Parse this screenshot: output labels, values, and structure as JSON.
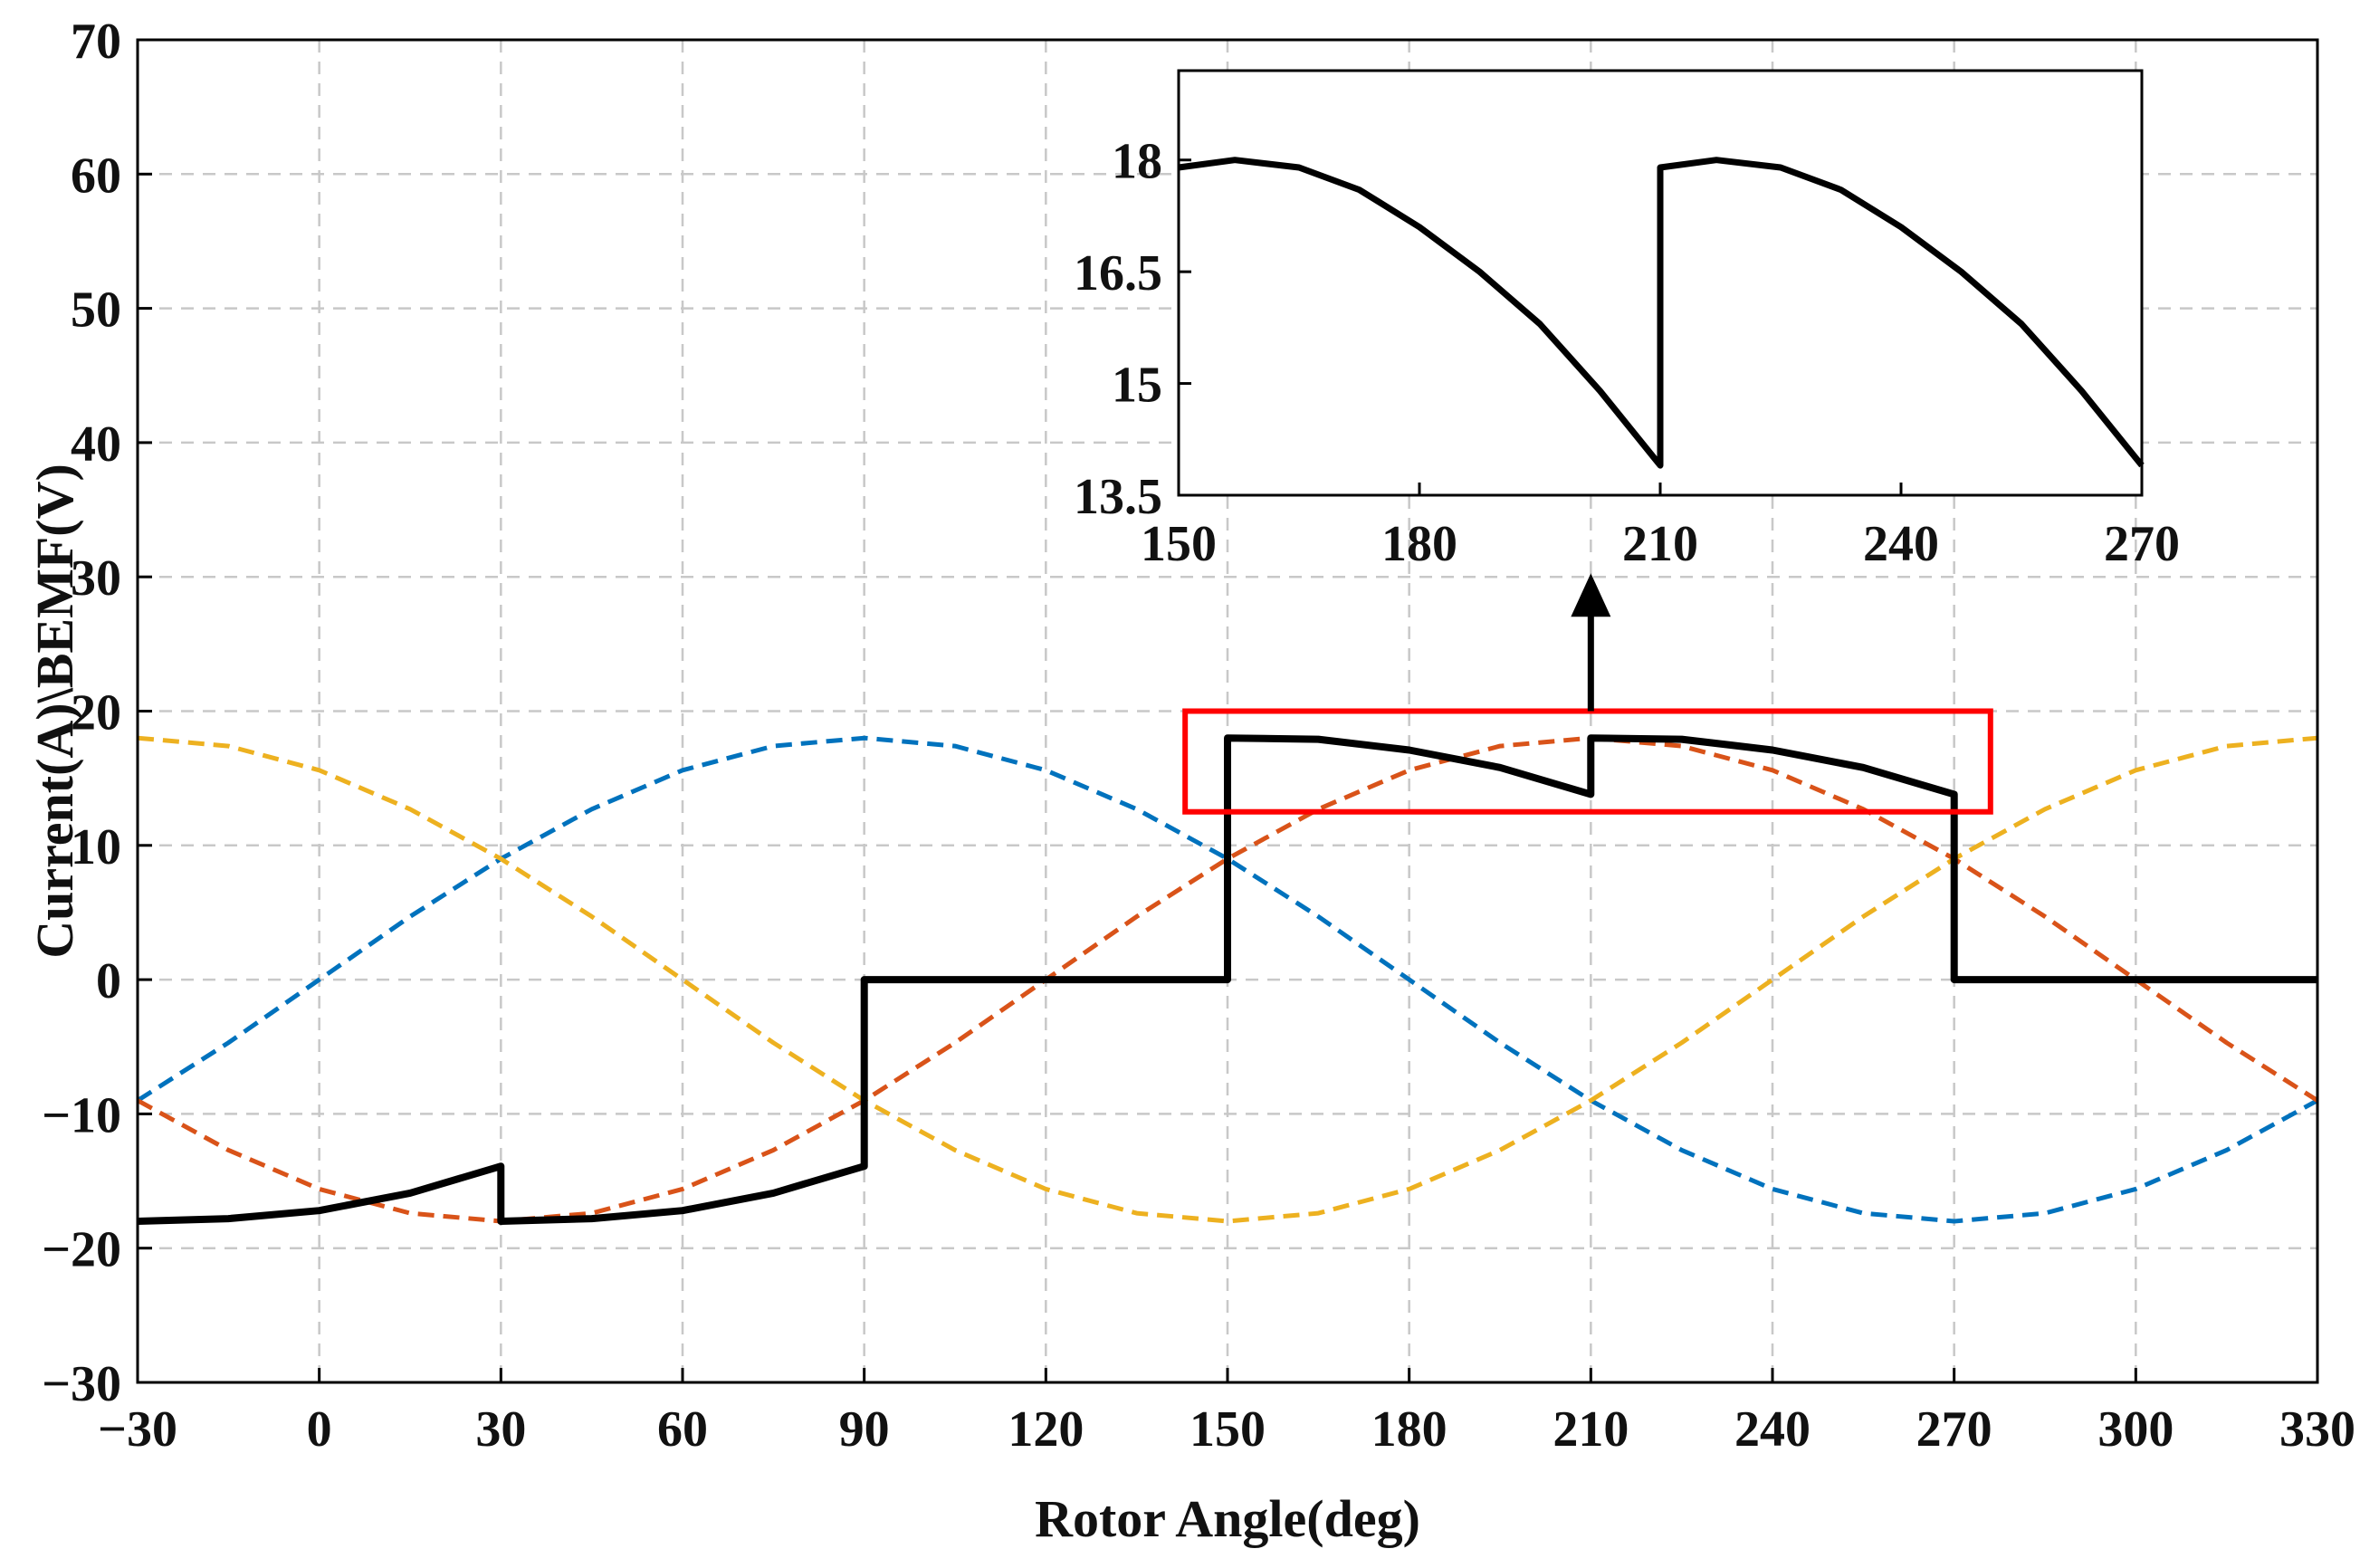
{
  "chart_data": [
    {
      "type": "line",
      "title": "",
      "xlabel": "Rotor Angle(deg)",
      "ylabel": "Current(A)\\BEMF(V)",
      "xlim": [
        -30,
        330
      ],
      "ylim": [
        -30,
        70
      ],
      "xticks": [
        -30,
        0,
        30,
        60,
        90,
        120,
        150,
        180,
        210,
        240,
        270,
        300,
        330
      ],
      "yticks": [
        -30,
        -20,
        -10,
        0,
        10,
        20,
        30,
        40,
        50,
        60,
        70
      ],
      "xtick_labels": [
        "−30",
        "0",
        "30",
        "60",
        "90",
        "120",
        "150",
        "180",
        "210",
        "240",
        "270",
        "300",
        "330"
      ],
      "ytick_labels": [
        "−30",
        "−20",
        "−10",
        "0",
        "10",
        "20",
        "30",
        "40",
        "50",
        "60",
        "70"
      ],
      "grid": true,
      "legend": "none",
      "series": [
        {
          "style": "solid",
          "color": "#000000",
          "x": [
            -30,
            -15,
            0,
            15,
            30,
            30,
            45,
            60,
            75,
            90,
            90,
            120,
            150,
            150,
            165,
            180,
            195,
            210,
            210,
            225,
            240,
            255,
            270,
            270,
            300,
            330
          ],
          "y": [
            -18,
            -17.8,
            -17.2,
            -15.9,
            -13.9,
            -18,
            -17.8,
            -17.2,
            -15.9,
            -13.9,
            0,
            0,
            0,
            18,
            17.9,
            17.1,
            15.8,
            13.8,
            18,
            17.9,
            17.1,
            15.8,
            13.8,
            0,
            0,
            0
          ]
        },
        {
          "style": "dashed",
          "color": "#0072BD",
          "x": [
            -30,
            -15,
            0,
            15,
            30,
            45,
            60,
            75,
            90,
            105,
            120,
            135,
            150,
            165,
            180,
            195,
            210,
            225,
            240,
            255,
            270,
            285,
            300,
            315,
            330
          ],
          "y": [
            -9,
            -4.7,
            0,
            4.7,
            9,
            12.7,
            15.6,
            17.4,
            18,
            17.4,
            15.6,
            12.7,
            9,
            4.7,
            0,
            -4.7,
            -9,
            -12.7,
            -15.6,
            -17.4,
            -18,
            -17.4,
            -15.6,
            -12.7,
            -9
          ]
        },
        {
          "style": "dashed",
          "color": "#D95319",
          "x": [
            -30,
            -15,
            0,
            15,
            30,
            45,
            60,
            75,
            90,
            105,
            120,
            135,
            150,
            165,
            180,
            195,
            210,
            225,
            240,
            255,
            270,
            285,
            300,
            315,
            330
          ],
          "y": [
            -9,
            -12.7,
            -15.6,
            -17.4,
            -18,
            -17.4,
            -15.6,
            -12.7,
            -9,
            -4.7,
            0,
            4.7,
            9,
            12.7,
            15.6,
            17.4,
            18,
            17.4,
            15.6,
            12.7,
            9,
            4.7,
            0,
            -4.7,
            -9
          ]
        },
        {
          "style": "dashed",
          "color": "#EDB120",
          "x": [
            -30,
            -15,
            0,
            15,
            30,
            45,
            60,
            75,
            90,
            105,
            120,
            135,
            150,
            165,
            180,
            195,
            210,
            225,
            240,
            255,
            270,
            285,
            300,
            315,
            330
          ],
          "y": [
            18,
            17.4,
            15.6,
            12.7,
            9,
            4.7,
            0,
            -4.7,
            -9,
            -12.7,
            -15.6,
            -17.4,
            -18,
            -17.4,
            -15.6,
            -12.7,
            -9,
            -4.7,
            0,
            4.7,
            9,
            12.7,
            15.6,
            17.4,
            18
          ]
        }
      ],
      "annotations": [
        {
          "type": "rectangle",
          "color": "#FF0000",
          "x_range": [
            143,
            276
          ],
          "y_range": [
            12.5,
            20
          ]
        },
        {
          "type": "arrow",
          "color": "#000000",
          "from": [
            210,
            20
          ],
          "to": [
            210,
            30
          ]
        }
      ]
    },
    {
      "type": "line",
      "title": "",
      "xlabel": "",
      "ylabel": "",
      "xlim": [
        150,
        270
      ],
      "ylim": [
        13.5,
        19.2
      ],
      "xticks": [
        150,
        180,
        210,
        240,
        270
      ],
      "yticks": [
        13.5,
        15,
        16.5,
        18
      ],
      "xtick_labels": [
        "150",
        "180",
        "210",
        "240",
        "270"
      ],
      "ytick_labels": [
        "13.5",
        "15",
        "16.5",
        "18"
      ],
      "grid": false,
      "legend": "none",
      "series": [
        {
          "style": "solid",
          "color": "#000000",
          "x": [
            150,
            157,
            165,
            172.5,
            180,
            187.5,
            195,
            202.5,
            210,
            210,
            217,
            225,
            232.5,
            240,
            247.5,
            255,
            262.5,
            270
          ],
          "y": [
            17.9,
            18,
            17.9,
            17.6,
            17.1,
            16.5,
            15.8,
            14.9,
            13.9,
            17.9,
            18,
            17.9,
            17.6,
            17.1,
            16.5,
            15.8,
            14.9,
            13.9
          ]
        }
      ]
    }
  ]
}
